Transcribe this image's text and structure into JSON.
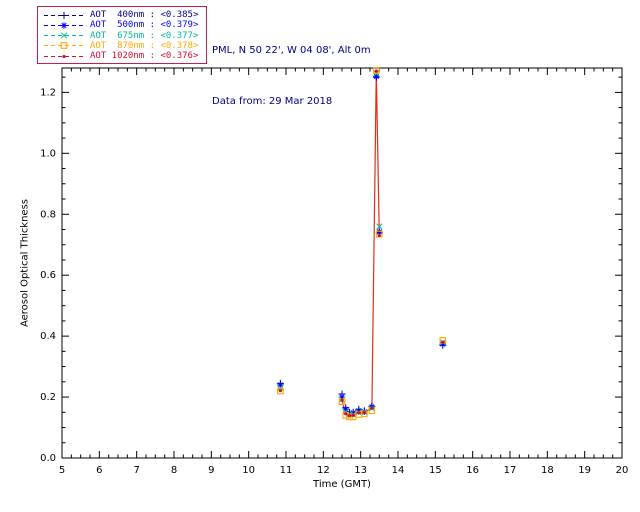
{
  "header": {
    "line1": "PML, N 50 22', W 04 08', Alt 0m",
    "line2": "Data from: 29 Mar 2018",
    "color": "#000080"
  },
  "legend": {
    "border_color": "#c22050",
    "items": [
      {
        "label": "AOT  400nm : <0.385>",
        "color": "#000090",
        "marker": "plus"
      },
      {
        "label": "AOT  500nm : <0.379>",
        "color": "#0000ff",
        "marker": "asterisk"
      },
      {
        "label": "AOT  675nm : <0.377>",
        "color": "#00bb99",
        "marker": "x"
      },
      {
        "label": "AOT  870nm : <0.378>",
        "color": "#ffaa00",
        "marker": "square"
      },
      {
        "label": "AOT 1020nm : <0.376>",
        "color": "#d01030",
        "marker": "dot"
      }
    ]
  },
  "chart_data": {
    "type": "scatter",
    "title": "",
    "xlabel": "Time (GMT)",
    "ylabel": "Aerosol Optical Thickness",
    "xlim": [
      5,
      20
    ],
    "ylim": [
      0,
      1.28
    ],
    "xticks": [
      5,
      6,
      7,
      8,
      9,
      10,
      11,
      12,
      13,
      14,
      15,
      16,
      17,
      18,
      19,
      20
    ],
    "yticks": [
      0.0,
      0.2,
      0.4,
      0.6,
      0.8,
      1.0,
      1.2
    ],
    "grid": false,
    "legend_position": "top-left",
    "x": [
      10.85,
      12.5,
      12.6,
      12.7,
      12.8,
      12.95,
      13.1,
      13.3,
      13.42,
      13.5,
      15.2
    ],
    "series": [
      {
        "name": "AOT 400nm",
        "mean": 0.385,
        "color": "#000090",
        "marker": "plus",
        "values": [
          0.245,
          0.21,
          0.165,
          0.15,
          0.15,
          0.16,
          0.155,
          0.17,
          1.25,
          0.74,
          0.37
        ]
      },
      {
        "name": "AOT 500nm",
        "mean": 0.379,
        "color": "#0000ff",
        "marker": "asterisk",
        "values": [
          0.24,
          0.2,
          0.16,
          0.148,
          0.148,
          0.155,
          0.152,
          0.168,
          1.252,
          0.742,
          0.374
        ]
      },
      {
        "name": "AOT 675nm",
        "mean": 0.377,
        "color": "#00bb99",
        "marker": "x",
        "values": [
          0.23,
          0.192,
          0.152,
          0.143,
          0.143,
          0.15,
          0.15,
          0.162,
          1.262,
          0.76,
          0.38
        ]
      },
      {
        "name": "AOT 870nm",
        "mean": 0.378,
        "color": "#ffaa00",
        "marker": "square",
        "values": [
          0.22,
          0.185,
          0.14,
          0.135,
          0.135,
          0.143,
          0.145,
          0.155,
          1.272,
          0.735,
          0.386
        ]
      },
      {
        "name": "AOT 1020nm",
        "mean": 0.376,
        "color": "#d01030",
        "marker": "dot",
        "line": true,
        "line_from": 1,
        "line_to": 9,
        "line_color": "#e03010",
        "values": [
          0.221,
          0.19,
          0.145,
          0.139,
          0.14,
          0.148,
          0.149,
          0.165,
          1.27,
          0.73,
          0.38
        ]
      }
    ]
  }
}
